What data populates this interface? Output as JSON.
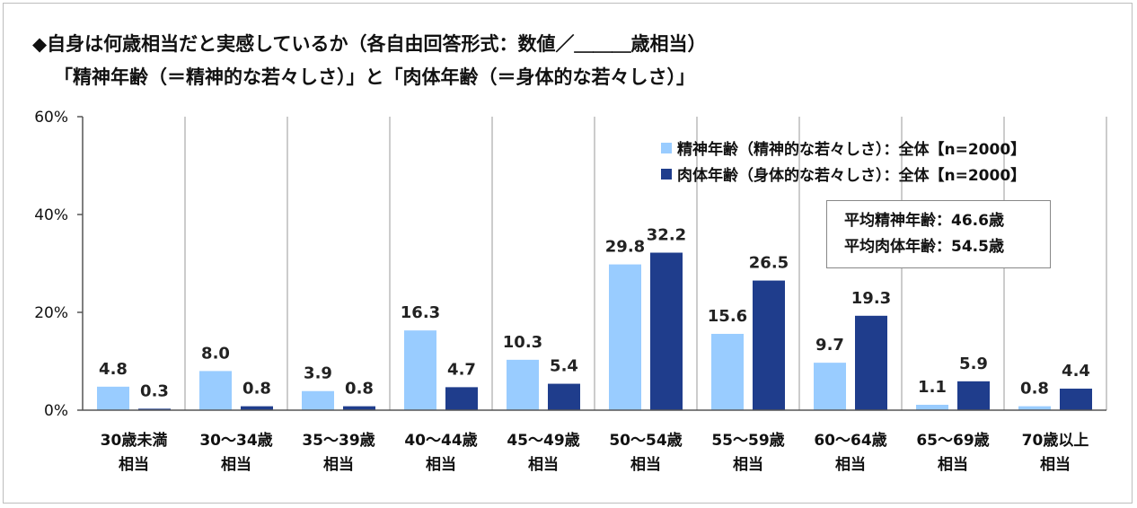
{
  "title": "◆自身は何歳相当だと実感しているか（各自由回答形式：数値／＿＿＿歳相当）",
  "subtitle": "「精神年齢（＝精神的な若々しさ）」と「肉体年齢（＝身体的な若々しさ）」",
  "colors": {
    "mental": "#99ccff",
    "physical": "#1f3d8c",
    "grid": "#9a9a9a",
    "axis": "#555555"
  },
  "average": {
    "mental": "平均精神年齢：46.6歳",
    "physical": "平均肉体年齢：54.5歳"
  },
  "chart_data": {
    "type": "bar",
    "categories": [
      [
        "30歳未満",
        "相当"
      ],
      [
        "30～34歳",
        "相当"
      ],
      [
        "35～39歳",
        "相当"
      ],
      [
        "40～44歳",
        "相当"
      ],
      [
        "45～49歳",
        "相当"
      ],
      [
        "50～54歳",
        "相当"
      ],
      [
        "55～59歳",
        "相当"
      ],
      [
        "60～64歳",
        "相当"
      ],
      [
        "65～69歳",
        "相当"
      ],
      [
        "70歳以上",
        "相当"
      ]
    ],
    "series": [
      {
        "name": "精神年齢（精神的な若々しさ）：全体【n=2000】",
        "values": [
          4.8,
          8.0,
          3.9,
          16.3,
          10.3,
          29.8,
          15.6,
          9.7,
          1.1,
          0.8
        ]
      },
      {
        "name": "肉体年齢（身体的な若々しさ）：全体【n=2000】",
        "values": [
          0.3,
          0.8,
          0.8,
          4.7,
          5.4,
          32.2,
          26.5,
          19.3,
          5.9,
          4.4
        ]
      }
    ],
    "yticks": [
      "0%",
      "20%",
      "40%",
      "60%"
    ],
    "ylim": [
      0,
      60
    ],
    "grid": "vertical separators",
    "legend_position": "top-right"
  }
}
